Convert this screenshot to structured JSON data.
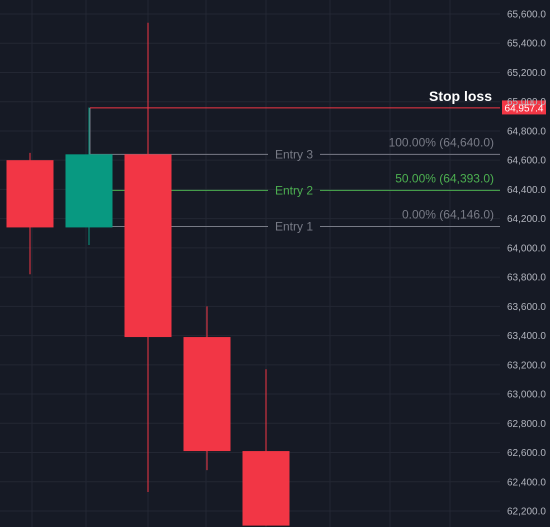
{
  "chart_data": {
    "type": "candlestick",
    "ylim": [
      62120,
      65680
    ],
    "y_ticks": [
      "65,600.0",
      "65,400.0",
      "65,200.0",
      "65,000.0",
      "64,800.0",
      "64,600.0",
      "64,400.0",
      "64,200.0",
      "64,000.0",
      "63,800.0",
      "63,600.0",
      "63,400.0",
      "63,200.0",
      "63,000.0",
      "62,800.0",
      "62,600.0",
      "62,400.0",
      "62,200.0"
    ],
    "grid": true,
    "candles": [
      {
        "open": 64600,
        "high": 64650,
        "low": 63820,
        "close": 64140,
        "direction": "down"
      },
      {
        "open": 64140,
        "high": 64960,
        "low": 64020,
        "close": 64640,
        "direction": "up"
      },
      {
        "open": 64640,
        "high": 65540,
        "low": 62330,
        "close": 63390,
        "direction": "down"
      },
      {
        "open": 63390,
        "high": 63600,
        "low": 62480,
        "close": 62610,
        "direction": "down"
      },
      {
        "open": 62610,
        "high": 63170,
        "low": 62100,
        "close": 62100,
        "direction": "down"
      }
    ],
    "levels": [
      {
        "label": "100.00% (64,640.0)",
        "value": 64640,
        "entry": "Entry 3",
        "color": "#787b86"
      },
      {
        "label": "50.00% (64,393.0)",
        "value": 64393,
        "entry": "Entry 2",
        "color": "#4caf50"
      },
      {
        "label": "0.00% (64,146.0)",
        "value": 64146,
        "entry": "Entry 1",
        "color": "#787b86"
      }
    ],
    "stop_loss": {
      "title": "Stop loss",
      "value": 64957.4,
      "badge": "64,957.4",
      "color": "#f23645"
    }
  },
  "colors": {
    "background": "#161a25",
    "grid": "#232733",
    "up": "#089981",
    "down": "#f23645",
    "axis_text": "#b2b5be"
  }
}
